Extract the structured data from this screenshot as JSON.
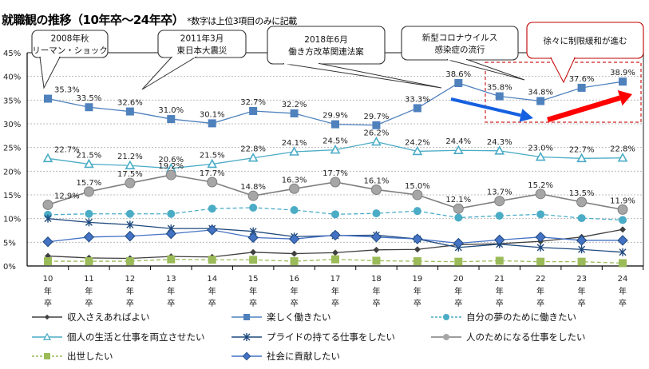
{
  "chart_data": {
    "type": "line",
    "title": "就職観の推移（10年卒～24年卒）",
    "subtitle": "*数字は上位3項目のみに記載",
    "xlabel": "",
    "ylabel": "",
    "ylim": [
      0,
      45
    ],
    "y_ticks": [
      "0%",
      "5%",
      "10%",
      "15%",
      "20%",
      "25%",
      "30%",
      "35%",
      "40%",
      "45%"
    ],
    "grid": true,
    "legend_position": "bottom",
    "categories": [
      "10",
      "11",
      "12",
      "13",
      "14",
      "15",
      "16",
      "17",
      "18",
      "19",
      "20",
      "21",
      "22",
      "23",
      "24"
    ],
    "category_suffix": [
      "年",
      "卒"
    ],
    "series": [
      {
        "name": "収入さえあればよい",
        "color": "#404040",
        "marker": "diamond-small",
        "dash": false,
        "labeled": false,
        "values": [
          2.1,
          1.7,
          1.6,
          2.0,
          1.9,
          2.9,
          2.6,
          2.8,
          3.4,
          3.5,
          4.5,
          4.7,
          5.2,
          6.1,
          7.7
        ]
      },
      {
        "name": "楽しく働きたい",
        "color": "#4F81BD",
        "marker": "square",
        "dash": false,
        "labeled": true,
        "values": [
          35.3,
          33.5,
          32.6,
          31.0,
          30.1,
          32.7,
          32.2,
          29.9,
          29.7,
          33.3,
          38.6,
          35.8,
          34.8,
          37.6,
          38.9
        ]
      },
      {
        "name": "自分の夢のために働きたい",
        "color": "#4BACC6",
        "marker": "circle-small",
        "dash": true,
        "labeled": false,
        "values": [
          10.8,
          11.0,
          11.0,
          11.0,
          12.1,
          12.3,
          11.8,
          10.9,
          11.1,
          11.6,
          10.2,
          10.6,
          10.9,
          10.1,
          9.7
        ]
      },
      {
        "name": "個人の生活と仕事を両立させたい",
        "color": "#4BACC6",
        "marker": "triangle",
        "dash": false,
        "labeled": true,
        "values": [
          22.7,
          21.5,
          21.2,
          20.6,
          21.5,
          22.8,
          24.1,
          24.5,
          26.2,
          24.2,
          24.4,
          24.3,
          23.0,
          22.7,
          22.8
        ]
      },
      {
        "name": "プライドの持てる仕事をしたい",
        "color": "#1F497D",
        "marker": "star",
        "dash": false,
        "labeled": false,
        "values": [
          10.0,
          9.2,
          8.7,
          7.9,
          7.9,
          7.3,
          6.2,
          6.4,
          6.5,
          5.7,
          3.9,
          4.6,
          3.9,
          3.5,
          2.9
        ]
      },
      {
        "name": "人のためになる仕事をしたい",
        "color": "#7F7F7F",
        "marker": "circle",
        "dash": false,
        "labeled": true,
        "values": [
          12.9,
          15.7,
          17.5,
          19.2,
          17.7,
          14.8,
          16.3,
          17.7,
          16.1,
          15.0,
          12.1,
          13.7,
          15.2,
          13.5,
          11.9
        ]
      },
      {
        "name": "出世したい",
        "color": "#9BBB59",
        "marker": "square",
        "dash": true,
        "labeled": false,
        "values": [
          1.0,
          1.0,
          1.0,
          1.4,
          1.3,
          1.3,
          1.0,
          1.4,
          1.1,
          1.0,
          0.9,
          1.1,
          0.9,
          0.9,
          0.6
        ]
      },
      {
        "name": "社会に貢献したい",
        "color": "#4472C4",
        "marker": "diamond",
        "dash": false,
        "labeled": false,
        "values": [
          5.1,
          6.1,
          6.3,
          6.8,
          7.6,
          6.0,
          5.7,
          6.5,
          6.1,
          5.7,
          4.8,
          5.5,
          6.1,
          5.4,
          5.4
        ]
      }
    ],
    "annotations": [
      {
        "lines": [
          "2008年秋",
          "リーマン・ショック"
        ],
        "target_category": "10",
        "color": "#333333"
      },
      {
        "lines": [
          "2011年3月",
          "東日本大震災"
        ],
        "target_category": "12",
        "color": "#333333"
      },
      {
        "lines": [
          "2018年6月",
          "働き方改革関連法案"
        ],
        "target_category": "19",
        "color": "#333333"
      },
      {
        "lines": [
          "新型コロナウイルス",
          "感染症の流行"
        ],
        "target_category": "22",
        "color": "#333333"
      },
      {
        "lines": [
          "徐々に制限緩和が進む"
        ],
        "target_category": "23",
        "color": "#C00000"
      }
    ],
    "arrows": [
      {
        "color": "#1560E0",
        "direction": "down",
        "from": "19",
        "to": "21"
      },
      {
        "color": "#FF0000",
        "direction": "up",
        "from": "21",
        "to": "24"
      }
    ]
  }
}
